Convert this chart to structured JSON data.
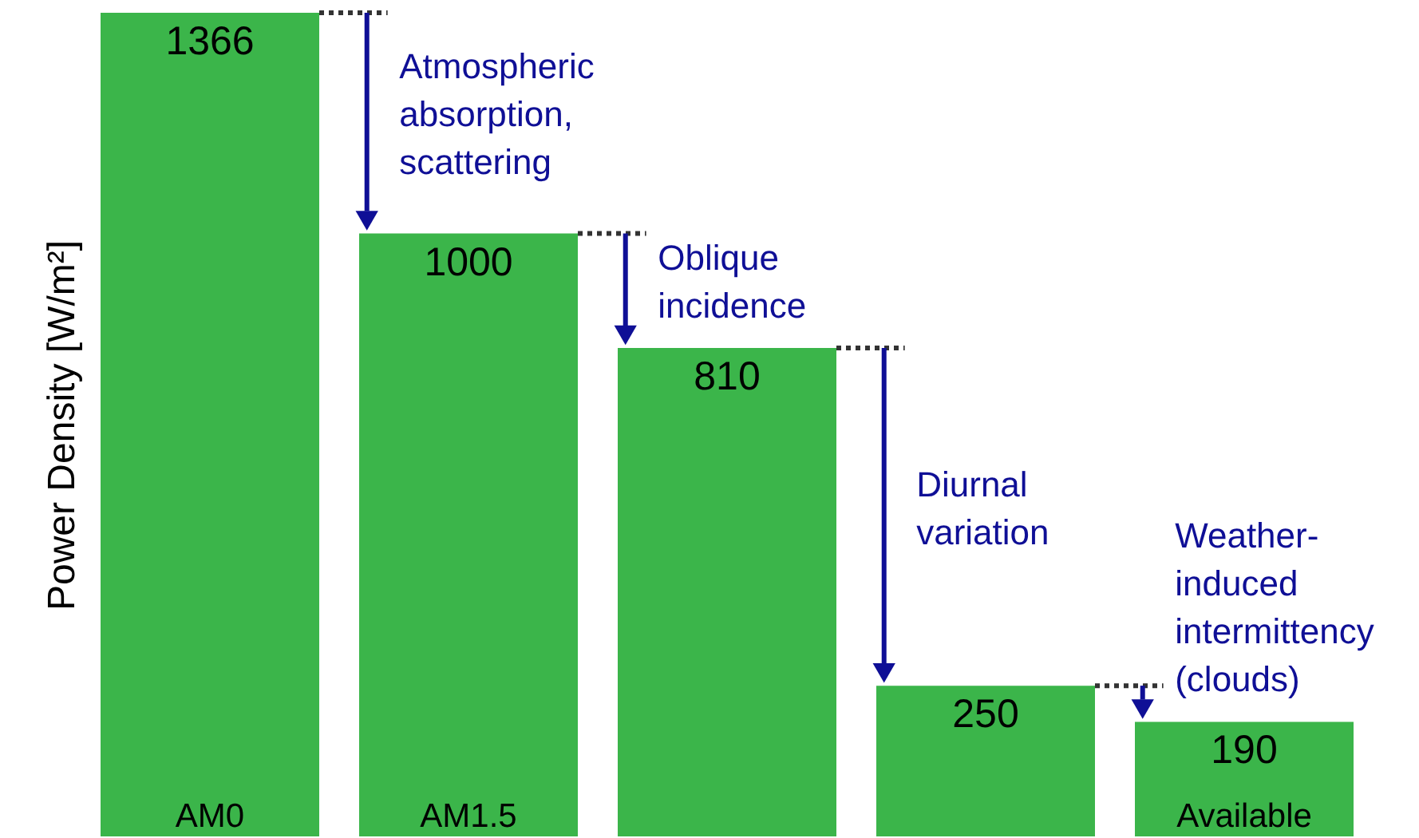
{
  "chart_data": {
    "type": "bar",
    "ylabel": "Power Density [W/m²]",
    "categories": [
      "AM0",
      "AM1.5",
      null,
      null,
      "Available"
    ],
    "values": [
      1366,
      1000,
      810,
      250,
      190
    ],
    "color": "#3bb54a",
    "data_labels": true,
    "annotations": [
      "Atmospheric\nabsorption,\nscattering",
      "Oblique\nincidence",
      "Diurnal\nvariation",
      "Weather-\ninduced\nintermittency\n(clouds)"
    ]
  }
}
